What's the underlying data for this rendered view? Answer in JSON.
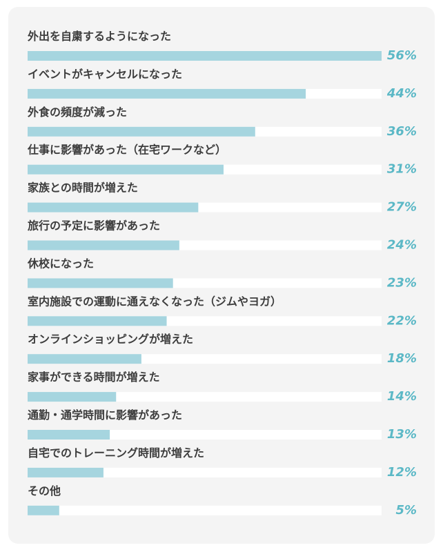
{
  "chart_data": {
    "type": "bar",
    "orientation": "horizontal",
    "categories": [
      "外出を自粛するようになった",
      "イベントがキャンセルになった",
      "外食の頻度が減った",
      "仕事に影響があった（在宅ワークなど）",
      "家族との時間が増えた",
      "旅行の予定に影響があった",
      "休校になった",
      "室内施設での運動に通えなくなった（ジムやヨガ）",
      "オンラインショッピングが増えた",
      "家事ができる時間が増えた",
      "通勤・通学時間に影響があった",
      "自宅でのトレーニング時間が増えた",
      "その他"
    ],
    "values": [
      56,
      44,
      36,
      31,
      27,
      24,
      23,
      22,
      18,
      14,
      13,
      12,
      5
    ],
    "value_labels": [
      "56%",
      "44%",
      "36%",
      "31%",
      "27%",
      "24%",
      "23%",
      "22%",
      "18%",
      "14%",
      "13%",
      "12%",
      "5%"
    ],
    "unit": "%",
    "xlim": [
      0,
      56
    ],
    "grid": false,
    "legend": "none",
    "bar_color": "#a6d5df",
    "track_color": "#ffffff",
    "value_color": "#5bb8c6",
    "label_color": "#3d3d3d",
    "background_color": "#f4f4f4"
  }
}
